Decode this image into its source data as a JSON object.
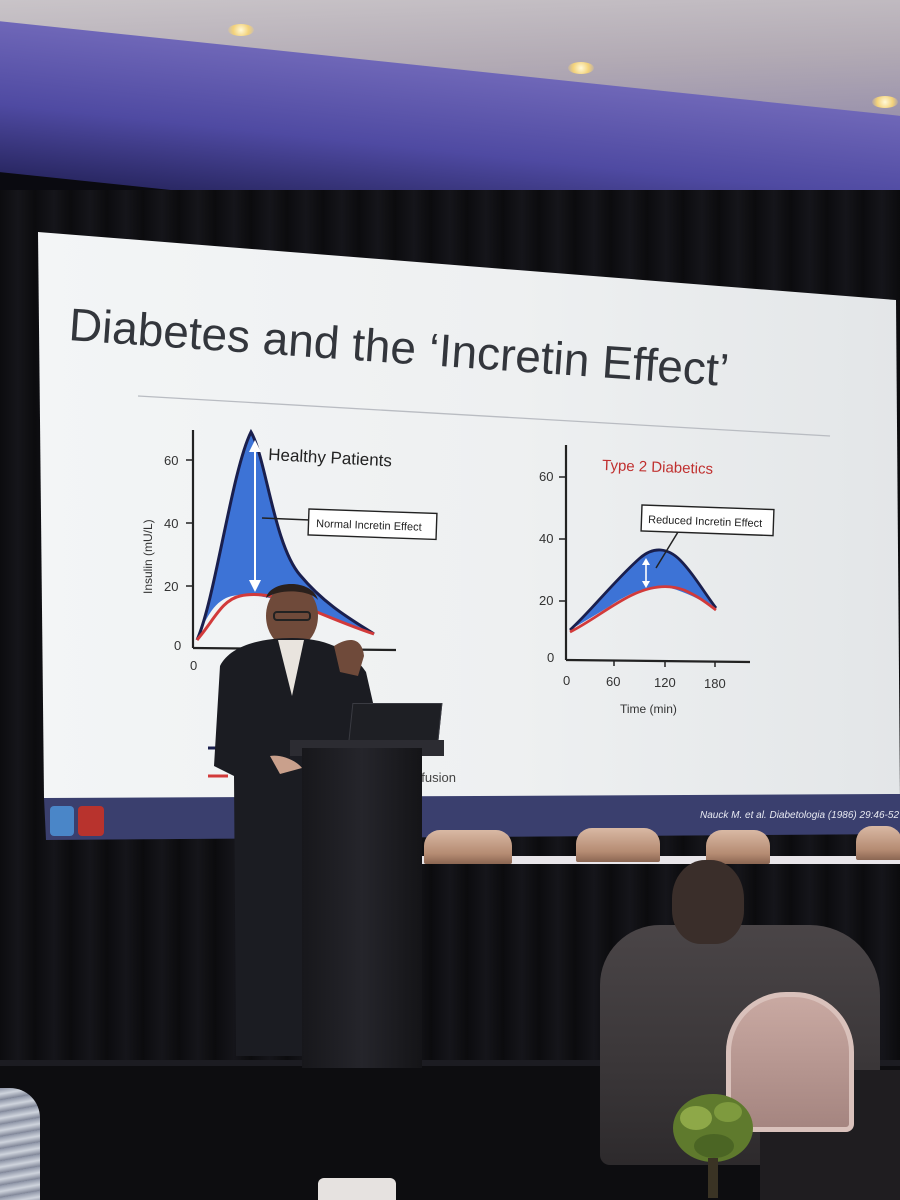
{
  "slide": {
    "title": "Diabetes and the ‘Incretin Effect’",
    "citation": "Nauck M. et al. Diabetologia (1986) 29:46-52",
    "legend_fragment": "nfusion"
  },
  "left_panel": {
    "title": "Healthy Patients",
    "ylabel": "Insulin (mU/L)",
    "yticks": [
      "0",
      "20",
      "40",
      "60"
    ],
    "xtick_visible": "0",
    "callout": "Normal Incretin Effect"
  },
  "right_panel": {
    "title": "Type 2 Diabetics",
    "xlabel": "Time (min)",
    "yticks": [
      "0",
      "20",
      "40",
      "60"
    ],
    "xticks": [
      "0",
      "60",
      "120",
      "180"
    ],
    "callout": "Reduced Incretin Effect"
  },
  "colors": {
    "oral_curve": "#1a1f4d",
    "iv_curve": "#d23a3a",
    "fill": "#3d73d6",
    "title_red": "#c0302f"
  }
}
